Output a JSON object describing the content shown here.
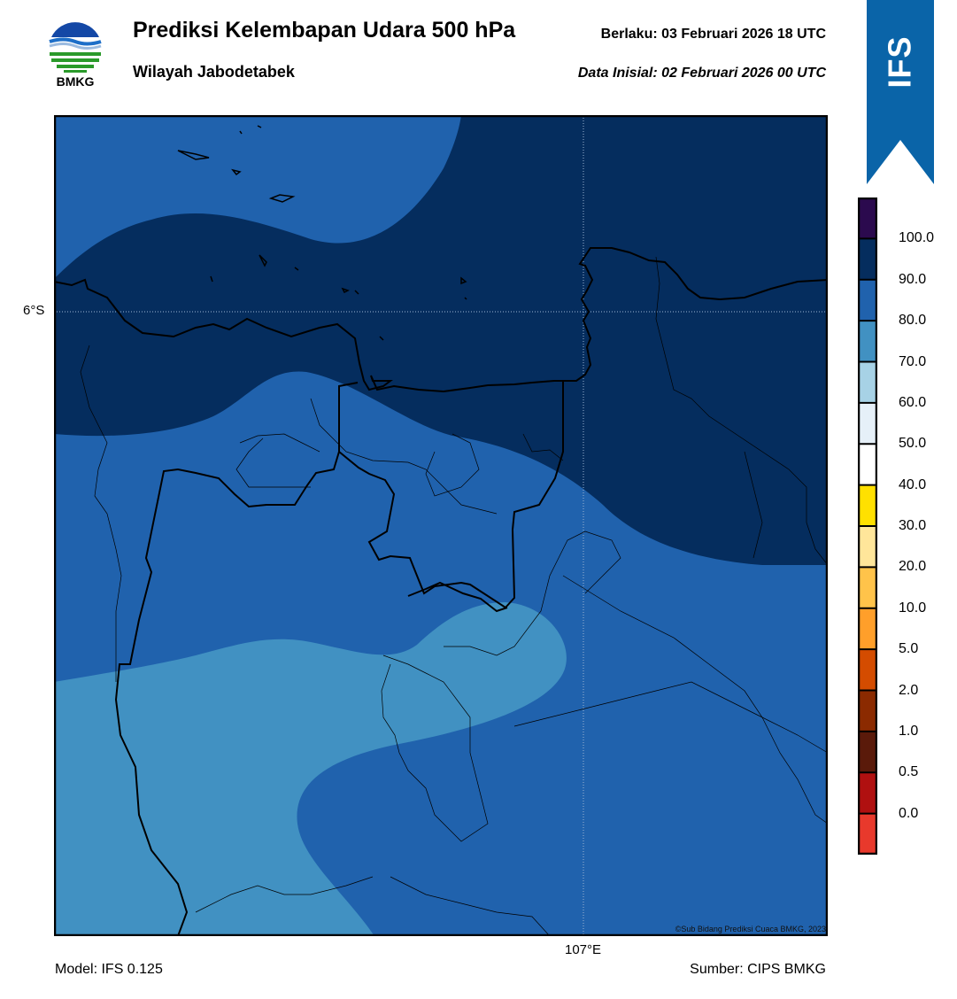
{
  "header": {
    "logo_text": "BMKG",
    "title": "Prediksi Kelembapan Udara 500 hPa",
    "subtitle": "Wilayah Jabodetabek",
    "valid_label": "Berlaku:  03 Februari 2026 18 UTC",
    "init_label": "Data Inisial:  02 Februari 2026 00 UTC"
  },
  "ribbon": {
    "text": "IFS",
    "color": "#0a64a8"
  },
  "map": {
    "lat_label": "6°S",
    "lon_label": "107°E",
    "credit": "©Sub Bidang Prediksi Cuaca BMKG, 2023",
    "fill_colors": {
      "band_90_100": "#052d5e",
      "band_80_90": "#2062ad",
      "band_70_80": "#4191c2"
    }
  },
  "colorbar": {
    "ticks": [
      "100.0",
      "90.0",
      "80.0",
      "70.0",
      "60.0",
      "50.0",
      "40.0",
      "30.0",
      "20.0",
      "10.0",
      "5.0",
      "2.0",
      "1.0",
      "0.5",
      "0.0"
    ],
    "colors_top_to_bottom": [
      "#2b0a4e",
      "#052d5e",
      "#2062ad",
      "#4191c2",
      "#a7d2e6",
      "#e6f0f8",
      "#ffffff",
      "#ffe000",
      "#ffe69a",
      "#ffc34a",
      "#ff9f2a",
      "#d44c00",
      "#8b2a00",
      "#5a1a0a",
      "#b01010",
      "#e8392c"
    ]
  },
  "footer": {
    "model": "Model: IFS 0.125",
    "source": "Sumber: CIPS BMKG"
  }
}
